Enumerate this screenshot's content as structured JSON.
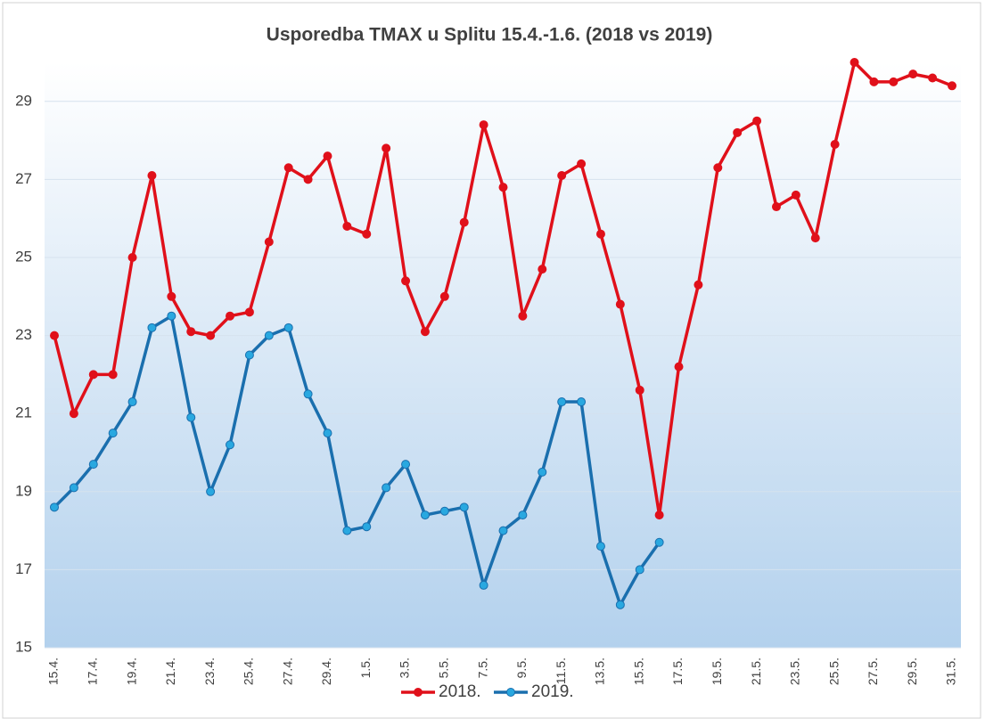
{
  "chart_data": {
    "type": "line",
    "title": "Usporedba TMAX u Splitu 15.4.-1.6. (2018 vs 2019)",
    "categories": [
      "15.4.",
      null,
      "17.4.",
      null,
      "19.4.",
      null,
      "21.4.",
      null,
      "23.4.",
      null,
      "25.4.",
      null,
      "27.4.",
      null,
      "29.4.",
      null,
      "1.5.",
      null,
      "3.5.",
      null,
      "5.5.",
      null,
      "7.5.",
      null,
      "9.5.",
      null,
      "11.5.",
      null,
      "13.5.",
      null,
      "15.5.",
      null,
      "17.5.",
      null,
      "19.5.",
      null,
      "21.5.",
      null,
      "23.5.",
      null,
      "25.5.",
      null,
      "27.5.",
      null,
      "29.5.",
      null,
      "31.5."
    ],
    "series": [
      {
        "name": "2018.",
        "color": "#e0101a",
        "values": [
          23.0,
          21.0,
          22.0,
          22.0,
          25.0,
          27.1,
          24.0,
          23.1,
          23.0,
          23.5,
          23.6,
          25.4,
          27.3,
          27.0,
          27.6,
          25.8,
          25.6,
          27.8,
          24.4,
          23.1,
          24.0,
          25.9,
          28.4,
          26.8,
          23.5,
          24.7,
          27.1,
          27.4,
          25.6,
          23.8,
          21.6,
          18.4,
          22.2,
          24.3,
          27.3,
          28.2,
          28.5,
          26.3,
          26.6,
          25.5,
          27.9,
          30.0,
          29.5,
          29.5,
          29.7,
          29.6,
          29.4
        ]
      },
      {
        "name": "2019.",
        "color": "#1a6fae",
        "marker_color": "#29a8e0",
        "values": [
          18.6,
          19.1,
          19.7,
          20.5,
          21.3,
          23.2,
          23.5,
          20.9,
          19.0,
          20.2,
          22.5,
          23.0,
          23.2,
          21.5,
          20.5,
          18.0,
          18.1,
          19.1,
          19.7,
          18.4,
          18.5,
          18.6,
          16.6,
          18.0,
          18.4,
          19.5,
          21.3,
          21.3,
          17.6,
          16.1,
          17.0,
          17.7,
          null,
          null,
          null,
          null,
          null,
          null,
          null,
          null,
          null,
          null,
          null,
          null,
          null,
          null,
          null
        ]
      }
    ],
    "ylim": [
      15,
      30
    ],
    "yticks": [
      15,
      17,
      19,
      21,
      23,
      25,
      27,
      29
    ],
    "grid": true,
    "legend": "bottom"
  }
}
